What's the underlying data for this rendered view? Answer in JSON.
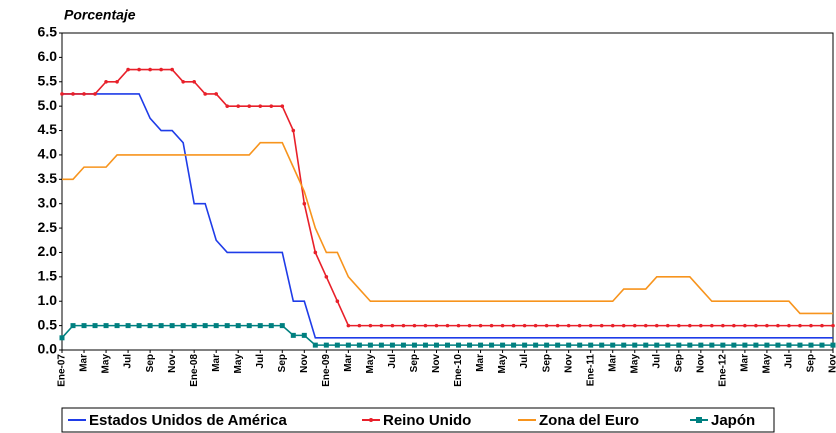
{
  "chart_data": {
    "type": "line",
    "title": "Porcentaje",
    "categories": [
      "Ene-07",
      null,
      "Mar",
      null,
      "May",
      null,
      "Jul",
      null,
      "Sep",
      null,
      "Nov",
      null,
      "Ene-08",
      null,
      "Mar",
      null,
      "May",
      null,
      "Jul",
      null,
      "Sep",
      null,
      "Nov",
      null,
      "Ene-09",
      null,
      "Mar",
      null,
      "May",
      null,
      "Jul",
      null,
      "Sep",
      null,
      "Nov",
      null,
      "Ene-10",
      null,
      "Mar",
      null,
      "May",
      null,
      "Jul",
      null,
      "Sep",
      null,
      "Nov",
      null,
      "Ene-11",
      null,
      "Mar",
      null,
      "May",
      null,
      "Jul",
      null,
      "Sep",
      null,
      "Nov",
      null,
      "Ene-12",
      null,
      "Mar",
      null,
      "May",
      null,
      "Jul",
      null,
      "Sep",
      null,
      "Nov"
    ],
    "series": [
      {
        "name": "Estados Unidos de América",
        "color": "#1f3ce8",
        "marker": "none",
        "values": [
          5.25,
          5.25,
          5.25,
          5.25,
          5.25,
          5.25,
          5.25,
          5.25,
          4.75,
          4.5,
          4.5,
          4.25,
          3.0,
          3.0,
          2.25,
          2.0,
          2.0,
          2.0,
          2.0,
          2.0,
          2.0,
          1.0,
          1.0,
          0.25,
          0.25,
          0.25,
          0.25,
          0.25,
          0.25,
          0.25,
          0.25,
          0.25,
          0.25,
          0.25,
          0.25,
          0.25,
          0.25,
          0.25,
          0.25,
          0.25,
          0.25,
          0.25,
          0.25,
          0.25,
          0.25,
          0.25,
          0.25,
          0.25,
          0.25,
          0.25,
          0.25,
          0.25,
          0.25,
          0.25,
          0.25,
          0.25,
          0.25,
          0.25,
          0.25,
          0.25,
          0.25,
          0.25,
          0.25,
          0.25,
          0.25,
          0.25,
          0.25,
          0.25,
          0.25,
          0.25,
          0.25
        ]
      },
      {
        "name": "Reino Unido",
        "color": "#e8202a",
        "marker": "circle",
        "values": [
          5.25,
          5.25,
          5.25,
          5.25,
          5.5,
          5.5,
          5.75,
          5.75,
          5.75,
          5.75,
          5.75,
          5.5,
          5.5,
          5.25,
          5.25,
          5.0,
          5.0,
          5.0,
          5.0,
          5.0,
          5.0,
          4.5,
          3.0,
          2.0,
          1.5,
          1.0,
          0.5,
          0.5,
          0.5,
          0.5,
          0.5,
          0.5,
          0.5,
          0.5,
          0.5,
          0.5,
          0.5,
          0.5,
          0.5,
          0.5,
          0.5,
          0.5,
          0.5,
          0.5,
          0.5,
          0.5,
          0.5,
          0.5,
          0.5,
          0.5,
          0.5,
          0.5,
          0.5,
          0.5,
          0.5,
          0.5,
          0.5,
          0.5,
          0.5,
          0.5,
          0.5,
          0.5,
          0.5,
          0.5,
          0.5,
          0.5,
          0.5,
          0.5,
          0.5,
          0.5,
          0.5
        ]
      },
      {
        "name": "Zona del Euro",
        "color": "#f7941d",
        "marker": "none",
        "values": [
          3.5,
          3.5,
          3.75,
          3.75,
          3.75,
          4.0,
          4.0,
          4.0,
          4.0,
          4.0,
          4.0,
          4.0,
          4.0,
          4.0,
          4.0,
          4.0,
          4.0,
          4.0,
          4.25,
          4.25,
          4.25,
          3.75,
          3.25,
          2.5,
          2.0,
          2.0,
          1.5,
          1.25,
          1.0,
          1.0,
          1.0,
          1.0,
          1.0,
          1.0,
          1.0,
          1.0,
          1.0,
          1.0,
          1.0,
          1.0,
          1.0,
          1.0,
          1.0,
          1.0,
          1.0,
          1.0,
          1.0,
          1.0,
          1.0,
          1.0,
          1.0,
          1.25,
          1.25,
          1.25,
          1.5,
          1.5,
          1.5,
          1.5,
          1.25,
          1.0,
          1.0,
          1.0,
          1.0,
          1.0,
          1.0,
          1.0,
          1.0,
          0.75,
          0.75,
          0.75,
          0.75
        ]
      },
      {
        "name": "Japón",
        "color": "#008080",
        "marker": "square",
        "values": [
          0.25,
          0.5,
          0.5,
          0.5,
          0.5,
          0.5,
          0.5,
          0.5,
          0.5,
          0.5,
          0.5,
          0.5,
          0.5,
          0.5,
          0.5,
          0.5,
          0.5,
          0.5,
          0.5,
          0.5,
          0.5,
          0.3,
          0.3,
          0.1,
          0.1,
          0.1,
          0.1,
          0.1,
          0.1,
          0.1,
          0.1,
          0.1,
          0.1,
          0.1,
          0.1,
          0.1,
          0.1,
          0.1,
          0.1,
          0.1,
          0.1,
          0.1,
          0.1,
          0.1,
          0.1,
          0.1,
          0.1,
          0.1,
          0.1,
          0.1,
          0.1,
          0.1,
          0.1,
          0.1,
          0.1,
          0.1,
          0.1,
          0.1,
          0.1,
          0.1,
          0.1,
          0.1,
          0.1,
          0.1,
          0.1,
          0.1,
          0.1,
          0.1,
          0.1,
          0.1,
          0.1
        ]
      }
    ],
    "ylim": [
      0,
      6.5
    ],
    "yticks": [
      {
        "value": 0,
        "label": "0.0"
      },
      0.5,
      {
        "value": 1,
        "label": "1.0"
      },
      1.5,
      {
        "value": 2,
        "label": "2.0"
      },
      2.5,
      {
        "value": 3,
        "label": "3.0"
      },
      3.5,
      {
        "value": 4,
        "label": "4.0"
      },
      4.5,
      {
        "value": 5,
        "label": "5.0"
      },
      5.5,
      {
        "value": 6,
        "label": "6.0"
      },
      6.5
    ],
    "grid": false,
    "legend": "bottom"
  }
}
